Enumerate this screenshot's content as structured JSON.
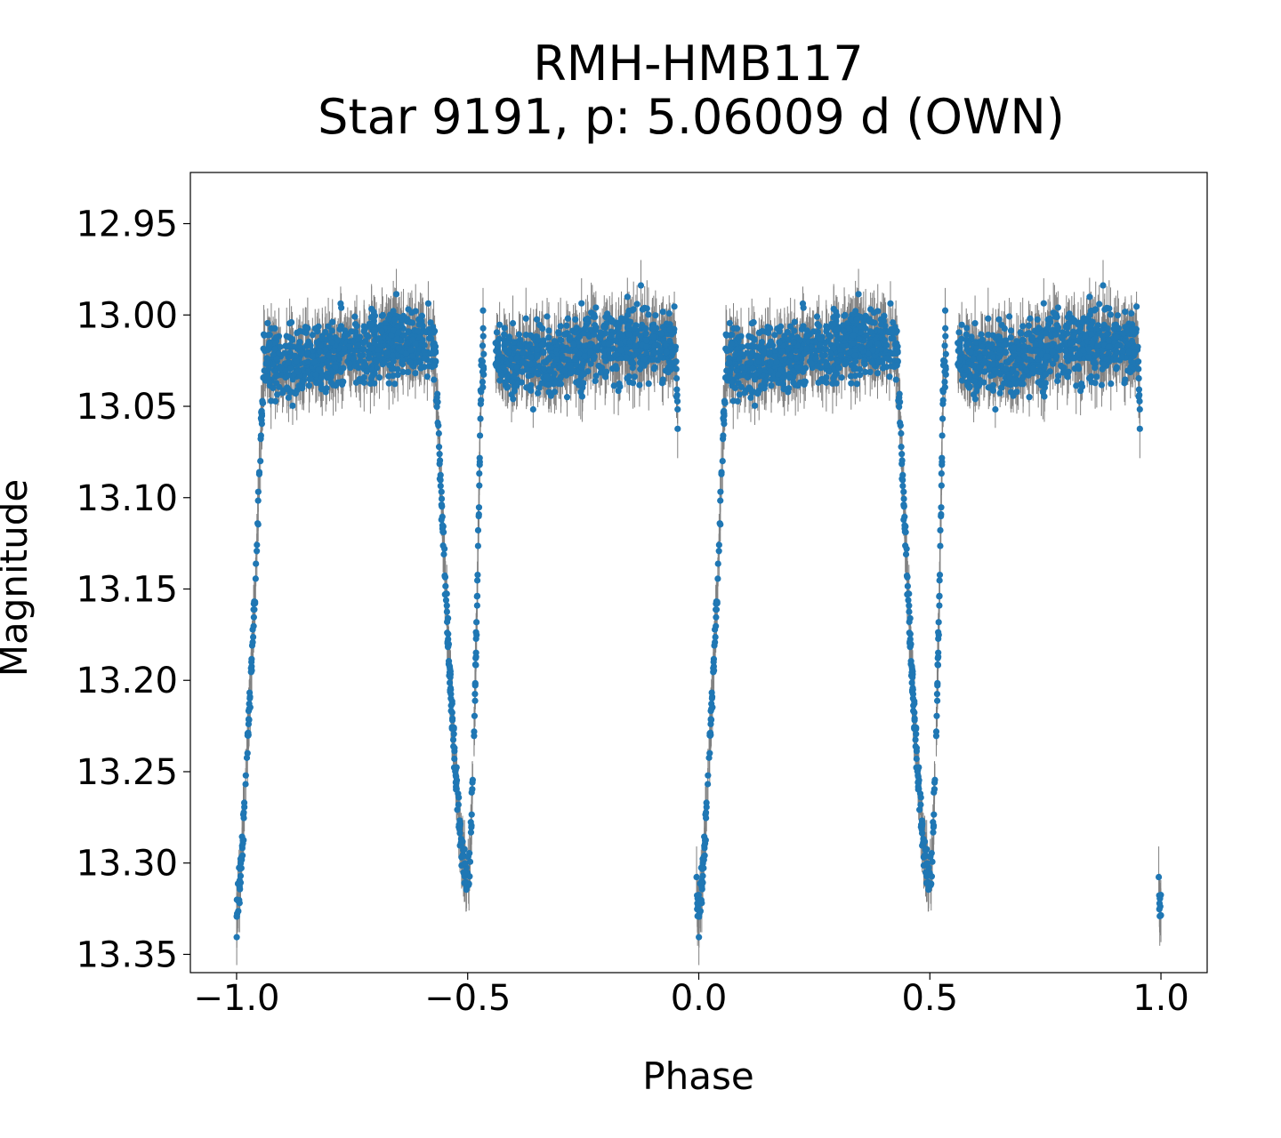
{
  "chart_data": {
    "type": "scatter",
    "title": "RMH-HMB117",
    "subtitle": "Star 9191, p: 5.06009 d (OWN)",
    "xlabel": "Phase",
    "ylabel": "Magnitude",
    "xlim": [
      -1.1,
      1.1
    ],
    "ylim": [
      13.36,
      12.922
    ],
    "y_inverted": true,
    "grid": false,
    "legend": "none",
    "x_ticks": [
      {
        "value": -1.0,
        "label": "−1.0"
      },
      {
        "value": -0.5,
        "label": "−0.5"
      },
      {
        "value": 0.0,
        "label": "0.0"
      },
      {
        "value": 0.5,
        "label": "0.5"
      },
      {
        "value": 1.0,
        "label": "1.0"
      }
    ],
    "y_ticks": [
      {
        "value": 12.95,
        "label": "12.95"
      },
      {
        "value": 13.0,
        "label": "13.00"
      },
      {
        "value": 13.05,
        "label": "13.05"
      },
      {
        "value": 13.1,
        "label": "13.10"
      },
      {
        "value": 13.15,
        "label": "13.15"
      },
      {
        "value": 13.2,
        "label": "13.20"
      },
      {
        "value": 13.25,
        "label": "13.25"
      },
      {
        "value": 13.3,
        "label": "13.30"
      },
      {
        "value": 13.35,
        "label": "13.35"
      }
    ],
    "colors": {
      "points": "#1f77b4",
      "errorbars": "#808080"
    },
    "light_curve_model": {
      "baseline_mag": 13.02,
      "primary_eclipse": {
        "phase_center": 0.0,
        "depth_min_mag": 13.33,
        "ingress_start_phase": -0.04,
        "egress_end_phase": 0.05
      },
      "secondary_eclipse": {
        "phase_start": 0.43,
        "phase_min": 0.5,
        "phase_end": 0.53,
        "min_mag": 13.31
      },
      "phase_gaps": [
        [
          -0.045,
          -0.005
        ],
        [
          0.535,
          0.56
        ]
      ],
      "phase_coverage": [
        -1.0,
        1.0
      ],
      "series_name": "",
      "point_count_approx": 3800
    },
    "series": [
      {
        "name": "",
        "sample_points": [
          {
            "x": -1.0,
            "y": 13.29,
            "err": 0.012
          },
          {
            "x": -0.98,
            "y": 13.2,
            "err": 0.012
          },
          {
            "x": -0.95,
            "y": 13.05,
            "err": 0.012
          },
          {
            "x": -0.9,
            "y": 13.02,
            "err": 0.012
          },
          {
            "x": -0.8,
            "y": 13.01,
            "err": 0.012
          },
          {
            "x": -0.6,
            "y": 13.02,
            "err": 0.012
          },
          {
            "x": -0.55,
            "y": 13.15,
            "err": 0.012
          },
          {
            "x": -0.51,
            "y": 13.26,
            "err": 0.012
          },
          {
            "x": -0.43,
            "y": 13.1,
            "err": 0.012
          },
          {
            "x": -0.3,
            "y": 13.02,
            "err": 0.012
          },
          {
            "x": -0.1,
            "y": 13.03,
            "err": 0.012
          },
          {
            "x": -0.02,
            "y": 13.2,
            "err": 0.012
          },
          {
            "x": 0.0,
            "y": 13.33,
            "err": 0.012
          },
          {
            "x": 0.05,
            "y": 13.05,
            "err": 0.012
          },
          {
            "x": 0.2,
            "y": 13.02,
            "err": 0.012
          },
          {
            "x": 0.45,
            "y": 13.15,
            "err": 0.012
          },
          {
            "x": 0.49,
            "y": 13.3,
            "err": 0.012
          },
          {
            "x": 0.57,
            "y": 13.1,
            "err": 0.012
          },
          {
            "x": 0.7,
            "y": 13.02,
            "err": 0.012
          },
          {
            "x": 0.9,
            "y": 13.03,
            "err": 0.012
          },
          {
            "x": 1.0,
            "y": 13.32,
            "err": 0.012
          }
        ]
      }
    ]
  }
}
